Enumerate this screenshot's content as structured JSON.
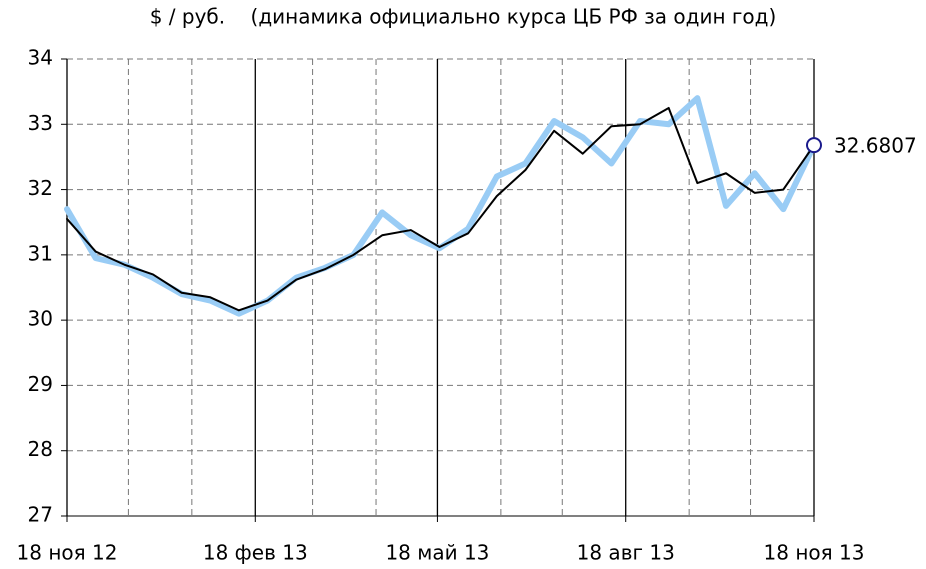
{
  "chart_data": {
    "type": "line",
    "title": "$ / руб.    (динамика официально курса ЦБ РФ за один год)",
    "x": [
      "2012-11-18",
      "2012-12-02",
      "2012-12-16",
      "2012-12-30",
      "2013-01-13",
      "2013-01-27",
      "2013-02-10",
      "2013-02-24",
      "2013-03-10",
      "2013-03-24",
      "2013-04-07",
      "2013-04-21",
      "2013-05-05",
      "2013-05-19",
      "2013-06-02",
      "2013-06-16",
      "2013-06-30",
      "2013-07-14",
      "2013-07-28",
      "2013-08-11",
      "2013-08-25",
      "2013-09-08",
      "2013-09-22",
      "2013-10-06",
      "2013-10-20",
      "2013-11-03",
      "2013-11-18"
    ],
    "series": [
      {
        "color": "#99ccf5",
        "values": [
          31.7,
          30.95,
          30.85,
          30.65,
          30.4,
          30.3,
          30.1,
          30.3,
          30.65,
          30.8,
          31.0,
          31.65,
          31.3,
          31.1,
          31.4,
          32.2,
          32.4,
          33.05,
          32.8,
          32.4,
          33.05,
          33.0,
          33.4,
          31.75,
          32.25,
          31.7,
          32.6807
        ]
      },
      {
        "color": "#000000",
        "values": [
          31.55,
          31.05,
          30.85,
          30.7,
          30.42,
          30.35,
          30.15,
          30.3,
          30.62,
          30.78,
          31.0,
          31.3,
          31.38,
          31.12,
          31.33,
          31.9,
          32.3,
          32.9,
          32.55,
          32.97,
          33.0,
          33.25,
          32.1,
          32.25,
          31.95,
          32.0,
          32.68
        ]
      }
    ],
    "annotation": "32.6807",
    "annotation_color": "#1a1a8c",
    "xlim": [
      "2012-11-18",
      "2013-11-18"
    ],
    "xticks": [
      {
        "value": "2012-11-18",
        "label": "18 ноя 12"
      },
      {
        "value": "2013-02-18",
        "label": "18 фев 13"
      },
      {
        "value": "2013-05-18",
        "label": "18 май 13"
      },
      {
        "value": "2013-08-18",
        "label": "18 авг 13"
      },
      {
        "value": "2013-11-18",
        "label": "18 ноя 13"
      }
    ],
    "xminorticks": [
      "2012-12-18",
      "2013-01-18",
      "2013-03-18",
      "2013-04-18",
      "2013-06-18",
      "2013-07-18",
      "2013-09-18",
      "2013-10-18"
    ],
    "ylim": [
      27,
      34
    ],
    "yticks": [
      27,
      28,
      29,
      30,
      31,
      32,
      33,
      34
    ],
    "grid": true
  }
}
